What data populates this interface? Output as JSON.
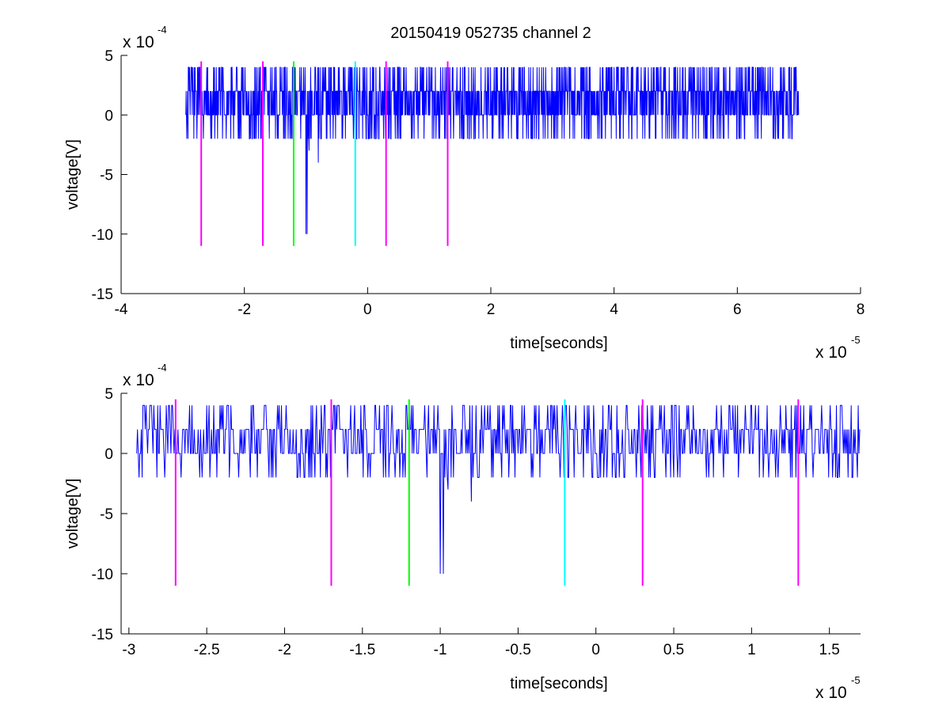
{
  "title": "20150419 052735 channel 2",
  "colors": {
    "signal": "#0000ff",
    "marker_magenta": "#ff00ff",
    "marker_green": "#00ff00",
    "marker_cyan": "#00ffff",
    "axes": "#000000",
    "background": "#ffffff"
  },
  "chart_data": [
    {
      "type": "line",
      "xlabel": "time[seconds]",
      "ylabel": "voltage[V]",
      "xlim": [
        -4e-05,
        8e-05
      ],
      "ylim": [
        -0.0015,
        0.0005
      ],
      "x_ticks": [
        -4e-05,
        -2e-05,
        0,
        2e-05,
        4e-05,
        6e-05,
        8e-05
      ],
      "x_tick_labels": [
        "-4",
        "-2",
        "0",
        "2",
        "4",
        "6",
        "8"
      ],
      "y_ticks": [
        0.0005,
        0,
        -0.0005,
        -0.001,
        -0.0015
      ],
      "y_tick_labels": [
        "5",
        "0",
        "-5",
        "-10",
        "-15"
      ],
      "x_multiplier": "x 10",
      "x_multiplier_exp": "-5",
      "y_multiplier": "x 10",
      "y_multiplier_exp": "-4",
      "grid": false,
      "signal_range_x": [
        -2.95e-05,
        7e-05
      ],
      "markers": [
        {
          "x": -2.7e-05,
          "y0": -0.0011,
          "y1": 0.00045,
          "color": "magenta"
        },
        {
          "x": -1.7e-05,
          "y0": -0.0011,
          "y1": 0.00045,
          "color": "magenta"
        },
        {
          "x": -1.2e-05,
          "y0": -0.0011,
          "y1": 0.00045,
          "color": "green"
        },
        {
          "x": -2e-06,
          "y0": -0.0011,
          "y1": 0.00045,
          "color": "cyan"
        },
        {
          "x": 3e-06,
          "y0": -0.0011,
          "y1": 0.00045,
          "color": "magenta"
        },
        {
          "x": 1.3e-05,
          "y0": -0.0011,
          "y1": 0.00045,
          "color": "magenta"
        }
      ]
    },
    {
      "type": "line",
      "xlabel": "time[seconds]",
      "ylabel": "voltage[V]",
      "xlim": [
        -3.05e-05,
        1.7e-05
      ],
      "ylim": [
        -0.0015,
        0.0005
      ],
      "x_ticks": [
        -3e-05,
        -2.5e-05,
        -2e-05,
        -1.5e-05,
        -1e-05,
        -5e-06,
        0,
        5e-06,
        1e-05,
        1.5e-05
      ],
      "x_tick_labels": [
        "-3",
        "-2.5",
        "-2",
        "-1.5",
        "-1",
        "-0.5",
        "0",
        "0.5",
        "1",
        "1.5"
      ],
      "y_ticks": [
        0.0005,
        0,
        -0.0005,
        -0.001,
        -0.0015
      ],
      "y_tick_labels": [
        "5",
        "0",
        "-5",
        "-10",
        "-15"
      ],
      "x_multiplier": "x 10",
      "x_multiplier_exp": "-5",
      "y_multiplier": "x 10",
      "y_multiplier_exp": "-4",
      "grid": false,
      "signal_range_x": [
        -2.95e-05,
        1.7e-05
      ],
      "markers": [
        {
          "x": -2.7e-05,
          "y0": -0.0011,
          "y1": 0.00045,
          "color": "magenta"
        },
        {
          "x": -1.7e-05,
          "y0": -0.0011,
          "y1": 0.00045,
          "color": "magenta"
        },
        {
          "x": -1.2e-05,
          "y0": -0.0011,
          "y1": 0.00045,
          "color": "green"
        },
        {
          "x": -2e-06,
          "y0": -0.0011,
          "y1": 0.00045,
          "color": "cyan"
        },
        {
          "x": 3e-06,
          "y0": -0.0011,
          "y1": 0.00045,
          "color": "magenta"
        },
        {
          "x": 1.3e-05,
          "y0": -0.0011,
          "y1": 0.00045,
          "color": "magenta"
        }
      ]
    }
  ],
  "signal_events": [
    {
      "x": -1e-05,
      "y": -0.001
    },
    {
      "x": -9.8e-06,
      "y": -0.001
    },
    {
      "x": -9.5e-06,
      "y": -0.0003
    },
    {
      "x": -8e-06,
      "y": -0.0004
    }
  ]
}
